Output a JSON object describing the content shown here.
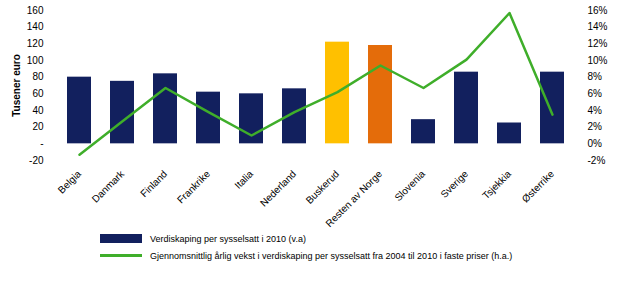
{
  "chart_data": {
    "type": "bar",
    "categories": [
      "Belgia",
      "Danmark",
      "Finland",
      "Frankrike",
      "Italia",
      "Nederland",
      "Buskerud",
      "Resten av Norge",
      "Slovenia",
      "Sverige",
      "Tsjekkia",
      "Østerrike"
    ],
    "series": [
      {
        "name": "Verdiskaping per sysselsatt i 2010 (v.a)",
        "type": "bar",
        "colors": [
          "#12205e",
          "#12205e",
          "#12205e",
          "#12205e",
          "#12205e",
          "#12205e",
          "#ffc000",
          "#e46c0a",
          "#12205e",
          "#12205e",
          "#12205e",
          "#12205e"
        ],
        "values": [
          80,
          75,
          84,
          62,
          60,
          66,
          122,
          118,
          29,
          86,
          25,
          86
        ]
      },
      {
        "name": "Gjennomsnittlig årlig vekst i verdiskaping per sysselsatt fra 2004 til 2010 i faste priser (h.a.)",
        "type": "line",
        "color": "#3fae2a",
        "axis": "y2",
        "values": [
          -1.3,
          2.7,
          6.7,
          3.8,
          1.0,
          3.8,
          6.2,
          9.4,
          6.7,
          10.1,
          15.7,
          3.5
        ]
      }
    ],
    "y_label": "Tusener euro",
    "ylim": [
      -20,
      160
    ],
    "yticks": [
      -20,
      {
        "value": 0,
        "label": "-"
      },
      20,
      40,
      60,
      80,
      100,
      120,
      140,
      160
    ],
    "y2lim": [
      -2,
      16
    ],
    "y2ticks": [
      {
        "value": -2,
        "label": "-2%"
      },
      {
        "value": 0,
        "label": "0%"
      },
      {
        "value": 2,
        "label": "2%"
      },
      {
        "value": 4,
        "label": "4%"
      },
      {
        "value": 6,
        "label": "6%"
      },
      {
        "value": 8,
        "label": "8%"
      },
      {
        "value": 10,
        "label": "10%"
      },
      {
        "value": 12,
        "label": "12%"
      },
      {
        "value": 14,
        "label": "14%"
      },
      {
        "value": 16,
        "label": "16%"
      }
    ],
    "grid": false,
    "legend": "bottom"
  }
}
